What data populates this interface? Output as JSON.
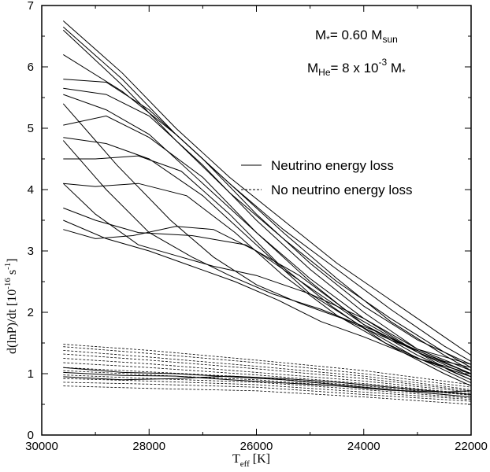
{
  "chart_data": {
    "type": "line",
    "xlabel": {
      "main": "T",
      "sub": "eff",
      "unit": " [K]"
    },
    "ylabel": {
      "main": "d(lnP)/dt  [10",
      "sup1": "-16",
      "mid": " s",
      "sup2": "-1",
      "end": "]"
    },
    "xlim": [
      30000,
      22000
    ],
    "ylim": [
      0,
      7
    ],
    "x_ticks": [
      "30000",
      "28000",
      "26000",
      "24000",
      "22000"
    ],
    "y_ticks": [
      "0",
      "1",
      "2",
      "3",
      "4",
      "5",
      "6",
      "7"
    ],
    "annotation": {
      "mass": {
        "pre": "M",
        "sub": "*",
        "mid": "= 0.60 M",
        "sub2": "sun"
      },
      "helium": {
        "pre": "M",
        "sub": "He",
        "mid": "= 8 x 10",
        "sup": "-3",
        "post": " M",
        "sub2": "*"
      }
    },
    "legend": {
      "position": "center-right",
      "entries": [
        {
          "label": "Neutrino energy loss",
          "style": "solid"
        },
        {
          "label": "No neutrino energy loss",
          "style": "dashed"
        }
      ]
    },
    "series": [
      {
        "style": "solid",
        "points": [
          [
            29600,
            6.75
          ],
          [
            28500,
            5.9
          ],
          [
            27500,
            5.0
          ],
          [
            26500,
            4.2
          ],
          [
            25500,
            3.5
          ],
          [
            24500,
            2.8
          ],
          [
            23500,
            2.2
          ],
          [
            22500,
            1.6
          ],
          [
            22000,
            1.3
          ]
        ]
      },
      {
        "style": "solid",
        "points": [
          [
            29600,
            6.65
          ],
          [
            28500,
            5.8
          ],
          [
            27500,
            4.9
          ],
          [
            26500,
            4.1
          ],
          [
            25500,
            3.35
          ],
          [
            24500,
            2.7
          ],
          [
            23500,
            2.05
          ],
          [
            22500,
            1.45
          ],
          [
            22000,
            1.2
          ]
        ]
      },
      {
        "style": "solid",
        "points": [
          [
            29600,
            6.6
          ],
          [
            28500,
            5.7
          ],
          [
            27500,
            4.8
          ],
          [
            26500,
            3.95
          ],
          [
            25500,
            3.2
          ],
          [
            24500,
            2.5
          ],
          [
            23500,
            1.9
          ],
          [
            22500,
            1.35
          ],
          [
            22000,
            1.1
          ]
        ]
      },
      {
        "style": "solid",
        "points": [
          [
            29600,
            6.2
          ],
          [
            28500,
            5.6
          ],
          [
            27500,
            4.9
          ],
          [
            26500,
            4.1
          ],
          [
            25500,
            3.3
          ],
          [
            24500,
            2.55
          ],
          [
            23500,
            1.85
          ],
          [
            22500,
            1.3
          ],
          [
            22000,
            1.05
          ]
        ]
      },
      {
        "style": "solid",
        "points": [
          [
            29600,
            5.8
          ],
          [
            28800,
            5.75
          ],
          [
            28000,
            5.3
          ],
          [
            27000,
            4.5
          ],
          [
            26000,
            3.6
          ],
          [
            25000,
            2.8
          ],
          [
            24000,
            2.1
          ],
          [
            23000,
            1.55
          ],
          [
            22000,
            1.15
          ]
        ]
      },
      {
        "style": "solid",
        "points": [
          [
            29600,
            5.65
          ],
          [
            28800,
            5.55
          ],
          [
            28000,
            5.2
          ],
          [
            27000,
            4.4
          ],
          [
            26000,
            3.5
          ],
          [
            25000,
            2.7
          ],
          [
            24000,
            2.0
          ],
          [
            23000,
            1.4
          ],
          [
            22000,
            1.05
          ]
        ]
      },
      {
        "style": "solid",
        "points": [
          [
            29600,
            5.55
          ],
          [
            28800,
            5.3
          ],
          [
            28000,
            4.9
          ],
          [
            27000,
            4.1
          ],
          [
            26000,
            3.3
          ],
          [
            25000,
            2.55
          ],
          [
            24000,
            1.9
          ],
          [
            23000,
            1.35
          ],
          [
            22000,
            0.95
          ]
        ]
      },
      {
        "style": "solid",
        "points": [
          [
            29600,
            5.05
          ],
          [
            28800,
            5.2
          ],
          [
            28000,
            4.85
          ],
          [
            27000,
            4.2
          ],
          [
            26000,
            3.3
          ],
          [
            25000,
            2.5
          ],
          [
            24000,
            1.8
          ],
          [
            23000,
            1.3
          ],
          [
            22000,
            0.9
          ]
        ]
      },
      {
        "style": "solid",
        "points": [
          [
            29600,
            4.85
          ],
          [
            28800,
            4.75
          ],
          [
            28000,
            4.5
          ],
          [
            27000,
            3.9
          ],
          [
            26000,
            3.1
          ],
          [
            25000,
            2.3
          ],
          [
            24000,
            1.75
          ],
          [
            23000,
            1.25
          ],
          [
            22000,
            0.95
          ]
        ]
      },
      {
        "style": "solid",
        "points": [
          [
            29600,
            4.5
          ],
          [
            29000,
            4.5
          ],
          [
            28200,
            4.55
          ],
          [
            27400,
            4.3
          ],
          [
            26500,
            3.6
          ],
          [
            25600,
            2.8
          ],
          [
            24600,
            2.1
          ],
          [
            23600,
            1.5
          ],
          [
            22600,
            1.1
          ],
          [
            22000,
            0.85
          ]
        ]
      },
      {
        "style": "solid",
        "points": [
          [
            29600,
            4.1
          ],
          [
            29000,
            4.05
          ],
          [
            28200,
            4.1
          ],
          [
            27300,
            3.9
          ],
          [
            26400,
            3.3
          ],
          [
            25500,
            2.6
          ],
          [
            24500,
            1.95
          ],
          [
            23500,
            1.45
          ],
          [
            22500,
            1.0
          ],
          [
            22000,
            0.8
          ]
        ]
      },
      {
        "style": "solid",
        "points": [
          [
            29600,
            3.7
          ],
          [
            29000,
            3.5
          ],
          [
            28200,
            3.3
          ],
          [
            27200,
            3.25
          ],
          [
            26200,
            3.1
          ],
          [
            25200,
            2.6
          ],
          [
            24200,
            1.95
          ],
          [
            23300,
            1.5
          ],
          [
            22400,
            1.05
          ],
          [
            22000,
            0.9
          ]
        ]
      },
      {
        "style": "solid",
        "points": [
          [
            29600,
            3.35
          ],
          [
            29000,
            3.2
          ],
          [
            28300,
            3.25
          ],
          [
            27500,
            3.4
          ],
          [
            26800,
            3.35
          ],
          [
            26000,
            3.0
          ],
          [
            25000,
            2.4
          ],
          [
            24000,
            1.8
          ],
          [
            23000,
            1.35
          ],
          [
            22000,
            1.0
          ]
        ]
      },
      {
        "style": "solid",
        "points": [
          [
            29600,
            4.1
          ],
          [
            29000,
            3.6
          ],
          [
            28200,
            3.1
          ],
          [
            27400,
            2.9
          ],
          [
            26800,
            2.75
          ],
          [
            26000,
            2.6
          ],
          [
            25000,
            2.3
          ],
          [
            24000,
            1.9
          ],
          [
            23000,
            1.4
          ],
          [
            22000,
            1.15
          ]
        ]
      },
      {
        "style": "solid",
        "points": [
          [
            29600,
            4.8
          ],
          [
            28800,
            4.0
          ],
          [
            28000,
            3.3
          ],
          [
            27200,
            2.9
          ],
          [
            26500,
            2.6
          ],
          [
            25700,
            2.3
          ],
          [
            24800,
            2.05
          ],
          [
            23800,
            1.7
          ],
          [
            22800,
            1.3
          ],
          [
            22000,
            1.0
          ]
        ]
      },
      {
        "style": "solid",
        "points": [
          [
            29600,
            5.4
          ],
          [
            28600,
            4.4
          ],
          [
            27600,
            3.5
          ],
          [
            26800,
            2.9
          ],
          [
            26000,
            2.45
          ],
          [
            25200,
            2.15
          ],
          [
            24400,
            1.9
          ],
          [
            23500,
            1.55
          ],
          [
            22500,
            1.2
          ],
          [
            22000,
            1.1
          ]
        ]
      },
      {
        "style": "solid",
        "points": [
          [
            29600,
            3.5
          ],
          [
            28800,
            3.2
          ],
          [
            28000,
            3.0
          ],
          [
            27200,
            2.75
          ],
          [
            26400,
            2.5
          ],
          [
            25600,
            2.2
          ],
          [
            24800,
            1.85
          ],
          [
            24000,
            1.6
          ],
          [
            23000,
            1.25
          ],
          [
            22000,
            1.0
          ]
        ]
      },
      {
        "style": "dashed",
        "points": [
          [
            29600,
            1.48
          ],
          [
            28000,
            1.38
          ],
          [
            26000,
            1.22
          ],
          [
            24000,
            1.05
          ],
          [
            22000,
            0.82
          ]
        ]
      },
      {
        "style": "dashed",
        "points": [
          [
            29600,
            1.44
          ],
          [
            28000,
            1.33
          ],
          [
            26000,
            1.18
          ],
          [
            24000,
            1.0
          ],
          [
            22000,
            0.78
          ]
        ]
      },
      {
        "style": "dashed",
        "points": [
          [
            29600,
            1.38
          ],
          [
            28000,
            1.27
          ],
          [
            26000,
            1.12
          ],
          [
            24000,
            0.96
          ],
          [
            22000,
            0.74
          ]
        ]
      },
      {
        "style": "dashed",
        "points": [
          [
            29600,
            1.32
          ],
          [
            28000,
            1.22
          ],
          [
            26000,
            1.08
          ],
          [
            24000,
            0.92
          ],
          [
            22000,
            0.72
          ]
        ]
      },
      {
        "style": "dashed",
        "points": [
          [
            29600,
            1.25
          ],
          [
            28000,
            1.16
          ],
          [
            26000,
            1.02
          ],
          [
            24000,
            0.88
          ],
          [
            22000,
            0.7
          ]
        ]
      },
      {
        "style": "dashed",
        "points": [
          [
            29600,
            1.18
          ],
          [
            28000,
            1.1
          ],
          [
            26000,
            0.98
          ],
          [
            24000,
            0.84
          ],
          [
            22000,
            0.67
          ]
        ]
      },
      {
        "style": "dashed",
        "points": [
          [
            29600,
            1.1
          ],
          [
            28000,
            1.03
          ],
          [
            26000,
            0.94
          ],
          [
            24000,
            0.8
          ],
          [
            22000,
            0.65
          ]
        ]
      },
      {
        "style": "dashed",
        "points": [
          [
            29600,
            1.05
          ],
          [
            28000,
            0.98
          ],
          [
            26000,
            0.9
          ],
          [
            24000,
            0.77
          ],
          [
            22000,
            0.62
          ]
        ]
      },
      {
        "style": "dashed",
        "points": [
          [
            29600,
            0.98
          ],
          [
            28000,
            0.92
          ],
          [
            26000,
            0.86
          ],
          [
            24000,
            0.74
          ],
          [
            22000,
            0.6
          ]
        ]
      },
      {
        "style": "dashed",
        "points": [
          [
            29600,
            0.92
          ],
          [
            28000,
            0.88
          ],
          [
            26000,
            0.82
          ],
          [
            24000,
            0.7
          ],
          [
            22000,
            0.58
          ]
        ]
      },
      {
        "style": "dashed",
        "points": [
          [
            29600,
            0.86
          ],
          [
            28000,
            0.83
          ],
          [
            26000,
            0.78
          ],
          [
            24000,
            0.66
          ],
          [
            22000,
            0.55
          ]
        ]
      },
      {
        "style": "dashed",
        "points": [
          [
            29600,
            0.8
          ],
          [
            28000,
            0.76
          ],
          [
            26000,
            0.72
          ],
          [
            24000,
            0.62
          ],
          [
            22000,
            0.5
          ]
        ]
      },
      {
        "style": "solid",
        "points": [
          [
            29600,
            1.1
          ],
          [
            28500,
            1.02
          ],
          [
            27500,
            1.0
          ],
          [
            26500,
            0.95
          ],
          [
            25500,
            0.9
          ],
          [
            24500,
            0.82
          ],
          [
            23500,
            0.74
          ],
          [
            22500,
            0.66
          ],
          [
            22000,
            0.62
          ]
        ]
      },
      {
        "style": "solid",
        "points": [
          [
            29600,
            0.95
          ],
          [
            28500,
            0.9
          ],
          [
            27500,
            0.92
          ],
          [
            26500,
            0.96
          ],
          [
            25500,
            0.92
          ],
          [
            24500,
            0.86
          ],
          [
            23500,
            0.78
          ],
          [
            22500,
            0.7
          ],
          [
            22000,
            0.66
          ]
        ]
      },
      {
        "style": "solid",
        "points": [
          [
            29600,
            1.02
          ],
          [
            28500,
            0.97
          ],
          [
            27500,
            0.96
          ],
          [
            26500,
            0.9
          ],
          [
            25500,
            0.85
          ],
          [
            24500,
            0.8
          ],
          [
            23500,
            0.73
          ],
          [
            22500,
            0.7
          ],
          [
            22000,
            0.72
          ]
        ]
      }
    ]
  }
}
